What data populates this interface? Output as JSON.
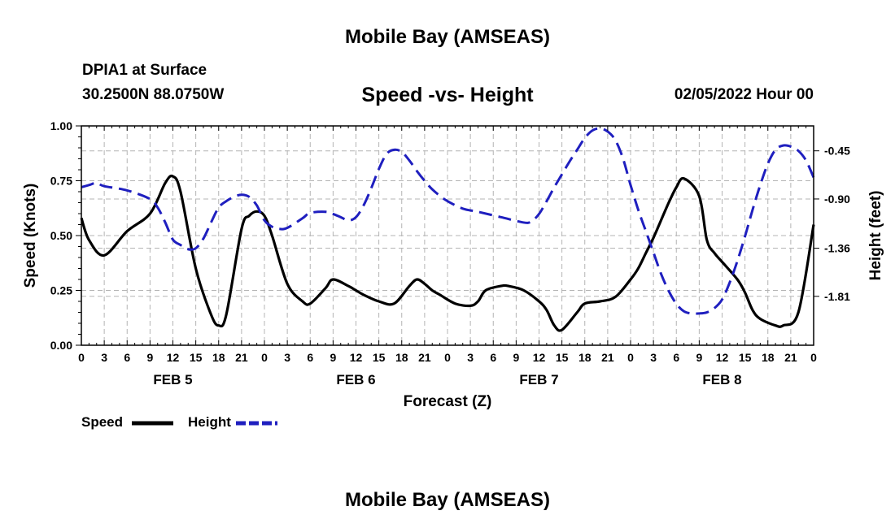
{
  "page_title": "Mobile Bay (AMSEAS)",
  "page_title_repeat": "Mobile Bay (AMSEAS)",
  "station": "DPIA1 at Surface",
  "coords": "30.2500N  88.0750W",
  "datetime": "02/05/2022 Hour 00",
  "colors": {
    "speed": "#000000",
    "height": "#1f1fbf",
    "grid": "#b4b4b4"
  },
  "chart_data": {
    "type": "line",
    "title": "Speed -vs- Height",
    "xlabel": "Forecast (Z)",
    "ylabel": "Speed (Knots)",
    "y2label": "Height (feet)",
    "xlim": [
      0,
      96
    ],
    "ylim": [
      0,
      1
    ],
    "y2lim": [
      -2.267,
      -0.217
    ],
    "x_tick_step": 3,
    "x_tick_labels": [
      "0",
      "3",
      "6",
      "9",
      "12",
      "15",
      "18",
      "21",
      "0",
      "3",
      "6",
      "9",
      "12",
      "15",
      "18",
      "21",
      "0",
      "3",
      "6",
      "9",
      "12",
      "15",
      "18",
      "21",
      "0",
      "3",
      "6",
      "9",
      "12",
      "15",
      "18",
      "21",
      "0"
    ],
    "y_ticks": [
      0,
      0.25,
      0.5,
      0.75,
      1.0
    ],
    "y_tick_labels": [
      "0.00",
      "0.25",
      "0.50",
      "0.75",
      "1.00"
    ],
    "y2_ticks": [
      -0.45,
      -0.9,
      -1.36,
      -1.81
    ],
    "y2_tick_labels": [
      "-0.45",
      "-0.90",
      "-1.36",
      "-1.81"
    ],
    "day_labels": [
      {
        "label": "FEB 5",
        "x": 12
      },
      {
        "label": "FEB 6",
        "x": 36
      },
      {
        "label": "FEB 7",
        "x": 60
      },
      {
        "label": "FEB 8",
        "x": 84
      }
    ],
    "series": [
      {
        "name": "Speed",
        "axis": "left",
        "x": [
          0,
          1,
          3,
          6,
          9,
          11,
          12,
          13,
          15,
          17,
          18,
          19,
          21,
          22,
          23,
          24,
          25,
          27,
          29,
          30,
          32,
          33,
          35,
          36,
          37,
          39,
          41,
          43,
          44,
          45,
          46,
          47,
          49,
          51,
          52,
          53,
          55,
          56,
          58,
          60,
          61,
          62,
          63,
          65,
          66,
          68,
          70,
          72,
          73,
          74,
          75,
          76,
          77,
          78,
          79,
          81,
          82,
          83,
          84,
          86,
          87,
          88,
          89,
          91,
          92,
          94,
          96
        ],
        "values": [
          0.58,
          0.48,
          0.41,
          0.52,
          0.6,
          0.74,
          0.77,
          0.7,
          0.35,
          0.14,
          0.09,
          0.14,
          0.53,
          0.59,
          0.61,
          0.59,
          0.5,
          0.28,
          0.2,
          0.19,
          0.26,
          0.3,
          0.27,
          0.25,
          0.23,
          0.2,
          0.19,
          0.27,
          0.3,
          0.28,
          0.25,
          0.23,
          0.19,
          0.18,
          0.2,
          0.25,
          0.27,
          0.27,
          0.25,
          0.2,
          0.16,
          0.09,
          0.07,
          0.15,
          0.19,
          0.2,
          0.22,
          0.3,
          0.35,
          0.42,
          0.49,
          0.57,
          0.65,
          0.72,
          0.76,
          0.68,
          0.48,
          0.42,
          0.38,
          0.3,
          0.24,
          0.16,
          0.12,
          0.09,
          0.09,
          0.15,
          0.55
        ]
      },
      {
        "name": "Height",
        "axis": "right",
        "x": [
          0,
          1,
          2,
          3,
          6,
          9,
          10,
          11,
          12,
          13,
          14,
          15,
          16,
          17,
          18,
          19,
          20,
          21,
          22,
          23,
          24,
          25,
          26,
          27,
          29,
          30,
          32,
          33,
          34,
          35,
          36,
          37,
          38,
          39,
          40,
          41,
          42,
          43,
          44,
          45,
          46,
          47,
          48,
          50,
          52,
          55,
          58,
          59,
          60,
          61,
          62,
          63,
          64,
          65,
          66,
          67,
          68,
          69,
          70,
          71,
          72,
          73,
          74,
          75,
          76,
          77,
          78,
          79,
          80,
          81,
          82,
          83,
          84,
          85,
          86,
          87,
          88,
          89,
          90,
          91,
          92,
          93,
          94,
          95,
          96
        ],
        "values": [
          -0.79,
          -0.77,
          -0.75,
          -0.78,
          -0.82,
          -0.9,
          -0.98,
          -1.12,
          -1.28,
          -1.33,
          -1.37,
          -1.36,
          -1.27,
          -1.12,
          -0.98,
          -0.92,
          -0.88,
          -0.86,
          -0.88,
          -0.96,
          -1.1,
          -1.16,
          -1.18,
          -1.17,
          -1.08,
          -1.03,
          -1.02,
          -1.04,
          -1.07,
          -1.1,
          -1.07,
          -0.96,
          -0.8,
          -0.62,
          -0.48,
          -0.44,
          -0.46,
          -0.54,
          -0.64,
          -0.73,
          -0.81,
          -0.87,
          -0.92,
          -0.99,
          -1.02,
          -1.07,
          -1.12,
          -1.11,
          -1.04,
          -0.92,
          -0.79,
          -0.67,
          -0.55,
          -0.44,
          -0.33,
          -0.26,
          -0.24,
          -0.27,
          -0.35,
          -0.52,
          -0.77,
          -1.0,
          -1.2,
          -1.4,
          -1.6,
          -1.76,
          -1.88,
          -1.95,
          -1.97,
          -1.97,
          -1.96,
          -1.92,
          -1.84,
          -1.68,
          -1.48,
          -1.25,
          -1.0,
          -0.77,
          -0.57,
          -0.44,
          -0.4,
          -0.41,
          -0.45,
          -0.54,
          -0.7
        ]
      }
    ],
    "legend": [
      {
        "name": "Speed",
        "color": "#000000",
        "style": "solid"
      },
      {
        "name": "Height",
        "color": "#1f1fbf",
        "style": "dashed"
      }
    ],
    "legend_position": "bottom-left",
    "grid": true
  }
}
